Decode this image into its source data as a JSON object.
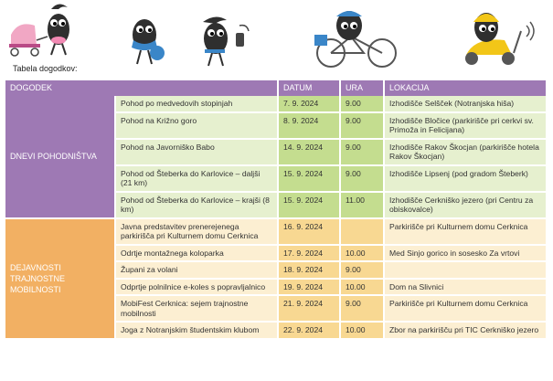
{
  "caption": "Tabela dogodkov:",
  "headers": [
    "DOGODEK",
    "DATUM",
    "URA",
    "LOKACIJA"
  ],
  "groups": [
    {
      "name": "DNEVI POHODNIŠTVA",
      "rows": [
        {
          "event": "Pohod po medvedovih stopinjah",
          "date": "7. 9. 2024",
          "time": "9.00",
          "location": "Izhodišče Selšček (Notranjska hiša)"
        },
        {
          "event": "Pohod na Križno goro",
          "date": "8. 9. 2024",
          "time": "9.00",
          "location": "Izhodišče Bločice (parkirišče pri cerkvi sv. Primoža in Felicijana)"
        },
        {
          "event": "Pohod na Javorniško Babo",
          "date": "14. 9. 2024",
          "time": "9.00",
          "location": "Izhodišče Rakov Škocjan (parkirišče hotela Rakov Škocjan)"
        },
        {
          "event": "Pohod od Šteberka do Karlovice – daljši (21 km)",
          "date": "15. 9. 2024",
          "time": "9.00",
          "location": "Izhodišče Lipsenj (pod gradom Šteberk)"
        },
        {
          "event": "Pohod od Šteberka do Karlovice – krajši (8 km)",
          "date": "15. 9. 2024",
          "time": "11.00",
          "location": "Izhodišče Cerkniško jezero (pri Centru za obiskovalce)"
        }
      ]
    },
    {
      "name": "DEJAVNOSTI TRAJNOSTNE MOBILNOSTI",
      "rows": [
        {
          "event": "Javna predstavitev prenerejenega parkirišča pri Kulturnem domu Cerknica",
          "date": "16. 9. 2024",
          "time": "",
          "location": "Parkirišče pri Kulturnem domu Cerknica"
        },
        {
          "event": "Odrtje montažnega koloparka",
          "date": "17. 9. 2024",
          "time": "10.00",
          "location": "Med Sinjo gorico in sosesko Za vrtovi"
        },
        {
          "event": "Župani za volani",
          "date": "18. 9. 2024",
          "time": "9.00",
          "location": ""
        },
        {
          "event": "Odprtje polnilnice e-koles s popravljalnico",
          "date": "19. 9. 2024",
          "time": "10.00",
          "location": "Dom na Slivnici"
        },
        {
          "event": "MobiFest Cerknica: sejem trajnostne mobilnosti",
          "date": "21. 9. 2024",
          "time": "9.00",
          "location": "Parkirišče pri Kulturnem domu Cerknica"
        },
        {
          "event": "Joga z Notranjskim študentskim klubom",
          "date": "22. 9. 2024",
          "time": "10.00",
          "location": "Zbor na parkirišču pri TIC Cerkniško jezero"
        }
      ]
    }
  ]
}
